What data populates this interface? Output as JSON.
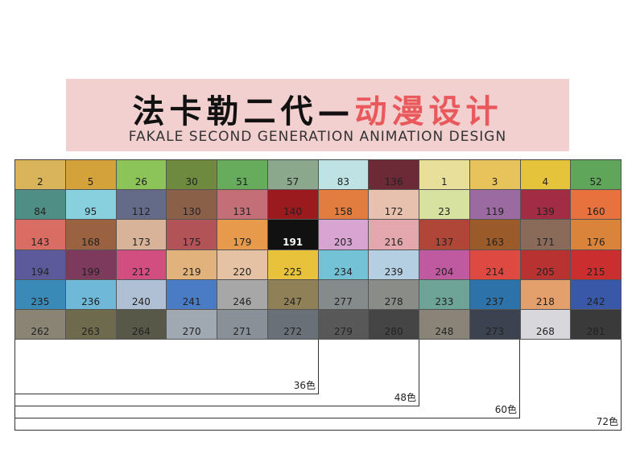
{
  "header": {
    "title_main": "法卡勒二代—",
    "title_accent": "动漫设计",
    "subtitle": "FAKALE SECOND GENERATION ANIMATION DESIGN"
  },
  "swatches": [
    {
      "code": "2",
      "color": "#d9b45a"
    },
    {
      "code": "5",
      "color": "#d4a23a"
    },
    {
      "code": "26",
      "color": "#8cc45a"
    },
    {
      "code": "30",
      "color": "#6e8a3f"
    },
    {
      "code": "51",
      "color": "#66ac5c"
    },
    {
      "code": "57",
      "color": "#8ba88c"
    },
    {
      "code": "83",
      "color": "#bfe3e4"
    },
    {
      "code": "136",
      "color": "#6b2a35"
    },
    {
      "code": "1",
      "color": "#e8df9a"
    },
    {
      "code": "3",
      "color": "#e8c25a"
    },
    {
      "code": "4",
      "color": "#e5c33a"
    },
    {
      "code": "52",
      "color": "#5fa55a"
    },
    {
      "code": "84",
      "color": "#4e8e84"
    },
    {
      "code": "95",
      "color": "#88d0dd"
    },
    {
      "code": "112",
      "color": "#636b88"
    },
    {
      "code": "130",
      "color": "#8a6048"
    },
    {
      "code": "131",
      "color": "#c46e78"
    },
    {
      "code": "140",
      "color": "#9a1a1e"
    },
    {
      "code": "158",
      "color": "#e07d3f"
    },
    {
      "code": "172",
      "color": "#e8c0ae"
    },
    {
      "code": "23",
      "color": "#d7e2a0"
    },
    {
      "code": "119",
      "color": "#9a6aa0"
    },
    {
      "code": "139",
      "color": "#a32c45"
    },
    {
      "code": "160",
      "color": "#e8723e"
    },
    {
      "code": "143",
      "color": "#d96d63"
    },
    {
      "code": "168",
      "color": "#9a6240"
    },
    {
      "code": "173",
      "color": "#d9b29a"
    },
    {
      "code": "175",
      "color": "#b25358"
    },
    {
      "code": "179",
      "color": "#e89a4c"
    },
    {
      "code": "191",
      "color": "#111111"
    },
    {
      "code": "203",
      "color": "#d8a5d2"
    },
    {
      "code": "216",
      "color": "#e4a7ad"
    },
    {
      "code": "137",
      "color": "#b04638"
    },
    {
      "code": "163",
      "color": "#9b5a2a"
    },
    {
      "code": "171",
      "color": "#8a6a58"
    },
    {
      "code": "176",
      "color": "#d9843a"
    },
    {
      "code": "194",
      "color": "#5c5a9a"
    },
    {
      "code": "199",
      "color": "#7d3a5c"
    },
    {
      "code": "212",
      "color": "#d24e80"
    },
    {
      "code": "219",
      "color": "#e2b27c"
    },
    {
      "code": "220",
      "color": "#e6c2a4"
    },
    {
      "code": "225",
      "color": "#e8c23a"
    },
    {
      "code": "234",
      "color": "#74c2d6"
    },
    {
      "code": "239",
      "color": "#b4cee2"
    },
    {
      "code": "204",
      "color": "#c05aa0"
    },
    {
      "code": "214",
      "color": "#de4a42"
    },
    {
      "code": "205",
      "color": "#b83232"
    },
    {
      "code": "215",
      "color": "#ca2e2e"
    },
    {
      "code": "235",
      "color": "#3a8ab8"
    },
    {
      "code": "236",
      "color": "#6fb8d8"
    },
    {
      "code": "240",
      "color": "#b0c0d4"
    },
    {
      "code": "241",
      "color": "#4a7cc6"
    },
    {
      "code": "246",
      "color": "#a7a7a7"
    },
    {
      "code": "247",
      "color": "#908058"
    },
    {
      "code": "277",
      "color": "#858a8a"
    },
    {
      "code": "278",
      "color": "#8a8c88"
    },
    {
      "code": "233",
      "color": "#6ea498"
    },
    {
      "code": "237",
      "color": "#2e72aa"
    },
    {
      "code": "218",
      "color": "#e4a06c"
    },
    {
      "code": "242",
      "color": "#3a58a8"
    },
    {
      "code": "262",
      "color": "#8a8475"
    },
    {
      "code": "263",
      "color": "#6e6a4e"
    },
    {
      "code": "264",
      "color": "#585848"
    },
    {
      "code": "270",
      "color": "#a0a8b2"
    },
    {
      "code": "271",
      "color": "#8a9098"
    },
    {
      "code": "272",
      "color": "#6a7078"
    },
    {
      "code": "279",
      "color": "#585858"
    },
    {
      "code": "280",
      "color": "#454545"
    },
    {
      "code": "248",
      "color": "#8a8478"
    },
    {
      "code": "273",
      "color": "#3c4250"
    },
    {
      "code": "268",
      "color": "#d8d8dc"
    },
    {
      "code": "281",
      "color": "#3a3a3a"
    }
  ],
  "sets": [
    {
      "label": "36色"
    },
    {
      "label": "48色"
    },
    {
      "label": "60色"
    },
    {
      "label": "72色"
    }
  ]
}
